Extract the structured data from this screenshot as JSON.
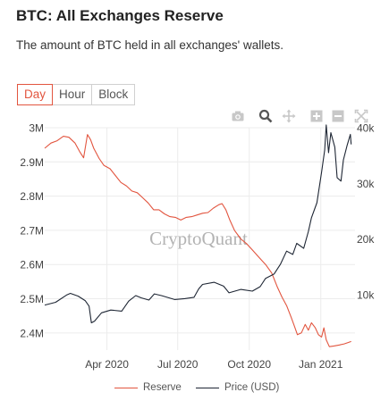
{
  "header": {
    "title": "BTC: All Exchanges Reserve",
    "subtitle": "The amount of BTC held in all exchanges' wallets."
  },
  "tabs": [
    {
      "label": "Day",
      "active": true
    },
    {
      "label": "Hour",
      "active": false
    },
    {
      "label": "Block",
      "active": false
    }
  ],
  "toolbar": {
    "icons": [
      "camera-icon",
      "zoom-icon",
      "pan-icon",
      "zoom-in-icon",
      "zoom-out-icon",
      "autoscale-icon"
    ]
  },
  "watermark": "CryptoQuant",
  "colors": {
    "reserve": "#e2553f",
    "price": "#1e2634",
    "accent": "#e2553f",
    "grid": "#ececec"
  },
  "chart_data": {
    "type": "line",
    "grid": true,
    "legend_position": "bottom",
    "x": {
      "start": "2020-01-12",
      "end": "2021-02-14",
      "ticks": [
        {
          "date": "2020-04-01",
          "label": "Apr 2020"
        },
        {
          "date": "2020-07-01",
          "label": "Jul 2020"
        },
        {
          "date": "2020-10-01",
          "label": "Oct 2020"
        },
        {
          "date": "2021-01-01",
          "label": "Jan 2021"
        }
      ]
    },
    "y_left": {
      "range": [
        2350000,
        3000000
      ],
      "ticks": [
        {
          "value": 2400000,
          "label": "2.4M"
        },
        {
          "value": 2500000,
          "label": "2.5M"
        },
        {
          "value": 2600000,
          "label": "2.6M"
        },
        {
          "value": 2700000,
          "label": "2.7M"
        },
        {
          "value": 2800000,
          "label": "2.8M"
        },
        {
          "value": 2900000,
          "label": "2.9M"
        },
        {
          "value": 3000000,
          "label": "3M"
        }
      ]
    },
    "y_right": {
      "range": [
        0,
        40000
      ],
      "ticks": [
        {
          "value": 10000,
          "label": "10k"
        },
        {
          "value": 20000,
          "label": "20k"
        },
        {
          "value": 30000,
          "label": "30k"
        },
        {
          "value": 40000,
          "label": "40k"
        }
      ]
    },
    "series": [
      {
        "name": "Reserve",
        "axis": "left",
        "points": [
          [
            "2020-01-12",
            2940000
          ],
          [
            "2020-01-20",
            2955000
          ],
          [
            "2020-01-28",
            2962000
          ],
          [
            "2020-02-05",
            2975000
          ],
          [
            "2020-02-12",
            2972000
          ],
          [
            "2020-02-20",
            2955000
          ],
          [
            "2020-02-26",
            2930000
          ],
          [
            "2020-03-02",
            2912000
          ],
          [
            "2020-03-07",
            2980000
          ],
          [
            "2020-03-11",
            2965000
          ],
          [
            "2020-03-15",
            2940000
          ],
          [
            "2020-03-22",
            2910000
          ],
          [
            "2020-03-28",
            2890000
          ],
          [
            "2020-04-05",
            2880000
          ],
          [
            "2020-04-12",
            2860000
          ],
          [
            "2020-04-19",
            2840000
          ],
          [
            "2020-04-26",
            2830000
          ],
          [
            "2020-05-03",
            2815000
          ],
          [
            "2020-05-10",
            2810000
          ],
          [
            "2020-05-17",
            2795000
          ],
          [
            "2020-05-24",
            2780000
          ],
          [
            "2020-05-31",
            2760000
          ],
          [
            "2020-06-07",
            2760000
          ],
          [
            "2020-06-14",
            2748000
          ],
          [
            "2020-06-21",
            2740000
          ],
          [
            "2020-06-28",
            2738000
          ],
          [
            "2020-07-05",
            2730000
          ],
          [
            "2020-07-12",
            2738000
          ],
          [
            "2020-07-19",
            2740000
          ],
          [
            "2020-07-26",
            2745000
          ],
          [
            "2020-08-02",
            2750000
          ],
          [
            "2020-08-09",
            2752000
          ],
          [
            "2020-08-16",
            2765000
          ],
          [
            "2020-08-23",
            2775000
          ],
          [
            "2020-08-27",
            2778000
          ],
          [
            "2020-09-01",
            2760000
          ],
          [
            "2020-09-06",
            2730000
          ],
          [
            "2020-09-12",
            2700000
          ],
          [
            "2020-09-20",
            2675000
          ],
          [
            "2020-09-28",
            2660000
          ],
          [
            "2020-10-06",
            2640000
          ],
          [
            "2020-10-14",
            2620000
          ],
          [
            "2020-10-22",
            2600000
          ],
          [
            "2020-10-30",
            2575000
          ],
          [
            "2020-11-06",
            2535000
          ],
          [
            "2020-11-12",
            2505000
          ],
          [
            "2020-11-18",
            2480000
          ],
          [
            "2020-11-24",
            2445000
          ],
          [
            "2020-11-28",
            2420000
          ],
          [
            "2020-12-02",
            2395000
          ],
          [
            "2020-12-07",
            2400000
          ],
          [
            "2020-12-12",
            2425000
          ],
          [
            "2020-12-16",
            2408000
          ],
          [
            "2020-12-20",
            2430000
          ],
          [
            "2020-12-25",
            2415000
          ],
          [
            "2020-12-29",
            2395000
          ],
          [
            "2021-01-02",
            2388000
          ],
          [
            "2021-01-05",
            2415000
          ],
          [
            "2021-01-08",
            2380000
          ],
          [
            "2021-01-12",
            2360000
          ],
          [
            "2021-01-18",
            2362000
          ],
          [
            "2021-01-25",
            2365000
          ],
          [
            "2021-01-31",
            2368000
          ],
          [
            "2021-02-05",
            2372000
          ],
          [
            "2021-02-09",
            2375000
          ]
        ]
      },
      {
        "name": "Price (USD)",
        "axis": "right",
        "points": [
          [
            "2020-01-12",
            8100
          ],
          [
            "2020-01-26",
            8600
          ],
          [
            "2020-02-09",
            9900
          ],
          [
            "2020-02-14",
            10200
          ],
          [
            "2020-02-24",
            9700
          ],
          [
            "2020-03-04",
            8900
          ],
          [
            "2020-03-09",
            7900
          ],
          [
            "2020-03-12",
            4900
          ],
          [
            "2020-03-16",
            5200
          ],
          [
            "2020-03-25",
            6700
          ],
          [
            "2020-04-06",
            7200
          ],
          [
            "2020-04-20",
            7000
          ],
          [
            "2020-04-29",
            8800
          ],
          [
            "2020-05-08",
            9800
          ],
          [
            "2020-05-15",
            9400
          ],
          [
            "2020-05-25",
            9000
          ],
          [
            "2020-06-01",
            10100
          ],
          [
            "2020-06-10",
            9800
          ],
          [
            "2020-06-27",
            9100
          ],
          [
            "2020-07-10",
            9250
          ],
          [
            "2020-07-22",
            9500
          ],
          [
            "2020-07-28",
            11000
          ],
          [
            "2020-08-02",
            11800
          ],
          [
            "2020-08-17",
            12200
          ],
          [
            "2020-08-29",
            11500
          ],
          [
            "2020-09-05",
            10300
          ],
          [
            "2020-09-20",
            10900
          ],
          [
            "2020-10-05",
            10600
          ],
          [
            "2020-10-15",
            11400
          ],
          [
            "2020-10-22",
            12900
          ],
          [
            "2020-11-02",
            13700
          ],
          [
            "2020-11-10",
            15400
          ],
          [
            "2020-11-18",
            17800
          ],
          [
            "2020-11-26",
            17200
          ],
          [
            "2020-12-01",
            19200
          ],
          [
            "2020-12-10",
            18300
          ],
          [
            "2020-12-16",
            21300
          ],
          [
            "2020-12-20",
            23800
          ],
          [
            "2020-12-27",
            26500
          ],
          [
            "2021-01-02",
            32000
          ],
          [
            "2021-01-06",
            36000
          ],
          [
            "2021-01-08",
            40500
          ],
          [
            "2021-01-11",
            35500
          ],
          [
            "2021-01-14",
            39100
          ],
          [
            "2021-01-19",
            36500
          ],
          [
            "2021-01-22",
            31000
          ],
          [
            "2021-01-27",
            30400
          ],
          [
            "2021-01-30",
            34200
          ],
          [
            "2021-02-04",
            36900
          ],
          [
            "2021-02-08",
            38800
          ],
          [
            "2021-02-09",
            37000
          ]
        ]
      }
    ]
  }
}
